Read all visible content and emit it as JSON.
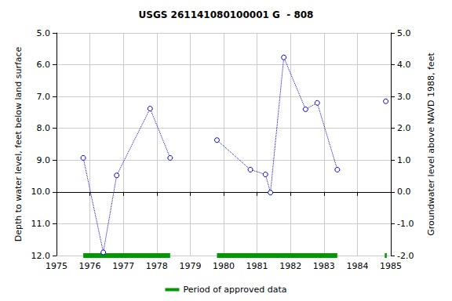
{
  "chart_data": {
    "type": "line",
    "title": "USGS 261141080100001 G  - 808",
    "x_label": null,
    "y_label": "Depth to water level, feet below land surface",
    "y2_label": "Groundwater level above NAVD 1988, feet",
    "xlim": [
      1975,
      1985
    ],
    "xticks": [
      1975,
      1976,
      1977,
      1978,
      1979,
      1980,
      1981,
      1982,
      1983,
      1984,
      1985
    ],
    "ylim": [
      5,
      12
    ],
    "yticks": [
      {
        "value": 5,
        "label": "5.0"
      },
      {
        "value": 6,
        "label": "6.0"
      },
      {
        "value": 7,
        "label": "7.0"
      },
      {
        "value": 8,
        "label": "8.0"
      },
      {
        "value": 9,
        "label": "9.0"
      },
      {
        "value": 10,
        "label": "10.0"
      },
      {
        "value": 11,
        "label": "11.0"
      },
      {
        "value": 12,
        "label": "12.0"
      }
    ],
    "y2lim": [
      -2,
      5
    ],
    "y2ticks": [
      {
        "value": -2,
        "label": "-2.0"
      },
      {
        "value": -1,
        "label": "-1.0"
      },
      {
        "value": 0,
        "label": "0.0"
      },
      {
        "value": 1,
        "label": "1.0"
      },
      {
        "value": 2,
        "label": "2.0"
      },
      {
        "value": 3,
        "label": "3.0"
      },
      {
        "value": 4,
        "label": "4.0"
      },
      {
        "value": 5,
        "label": "5.0"
      }
    ],
    "grid": true,
    "legend": "bottom",
    "x": [
      1975.8,
      1976.4,
      1976.8,
      1977.8,
      1978.4,
      1979.1,
      1979.8,
      1980.8,
      1981.25,
      1981.4,
      1981.8,
      1982.45,
      1982.8,
      1983.4,
      1984.1,
      1984.85
    ],
    "series": [
      {
        "type": "line",
        "color": "#0000cc",
        "marker": "circle-open",
        "line_style": "dotted",
        "values": [
          8.93,
          11.9,
          9.48,
          7.38,
          8.93,
          null,
          8.37,
          9.3,
          9.45,
          10.02,
          5.77,
          7.4,
          7.2,
          9.3,
          null,
          7.15
        ]
      }
    ],
    "approved_periods": {
      "name": "Period of approved data",
      "color": "#009900",
      "ranges": [
        [
          1975.8,
          1978.4
        ],
        [
          1979.8,
          1983.4
        ],
        [
          1984.82,
          1984.88
        ]
      ]
    }
  }
}
